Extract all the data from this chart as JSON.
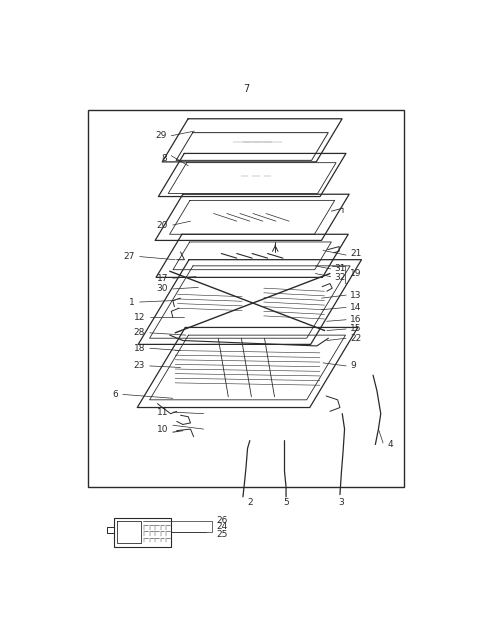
{
  "bg_color": "#ffffff",
  "line_color": "#2a2a2a",
  "fig_width": 4.8,
  "fig_height": 6.24,
  "dpi": 100
}
